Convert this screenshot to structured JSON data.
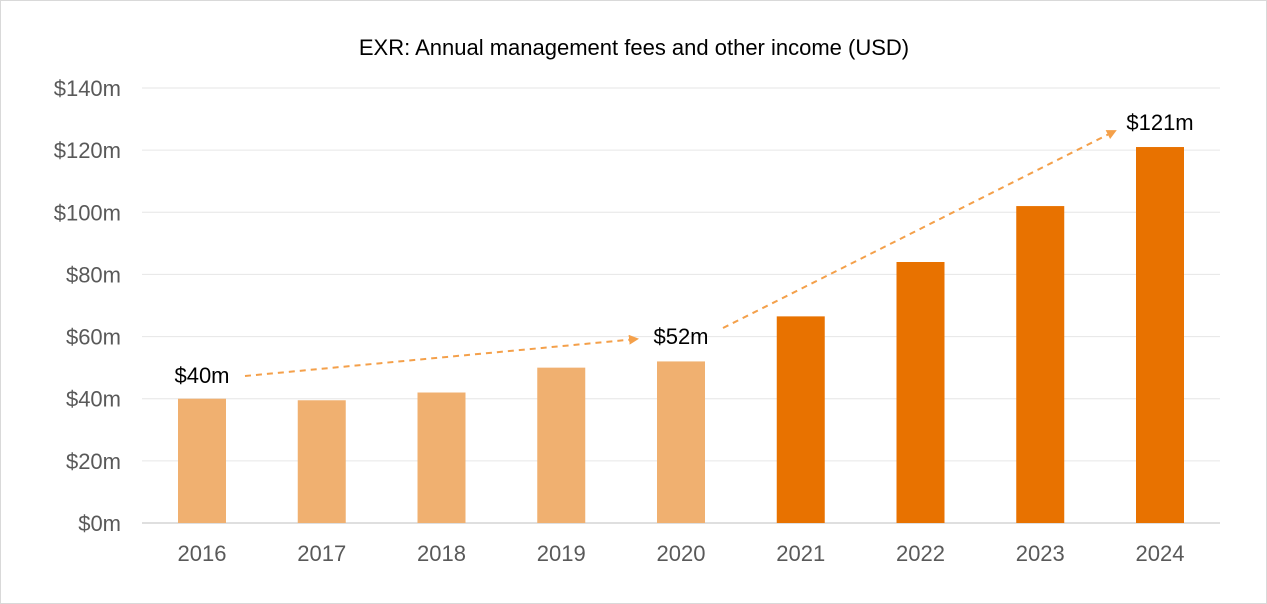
{
  "chart_data": {
    "type": "bar",
    "title": "EXR: Annual management fees and other income (USD)",
    "categories": [
      "2016",
      "2017",
      "2018",
      "2019",
      "2020",
      "2021",
      "2022",
      "2023",
      "2024"
    ],
    "values": [
      40,
      39.5,
      42,
      50,
      52,
      66.5,
      84,
      102,
      121
    ],
    "ylim": [
      0,
      140
    ],
    "y_ticks": [
      0,
      20,
      40,
      60,
      80,
      100,
      120,
      140
    ],
    "y_tick_labels": [
      "$0m",
      "$20m",
      "$40m",
      "$60m",
      "$80m",
      "$100m",
      "$120m",
      "$140m"
    ],
    "xlabel": "",
    "ylabel": "",
    "grid": true,
    "colors": {
      "historic": "#F0B070",
      "recent": "#E87200",
      "arrow": "#F4A04A",
      "grid": "#e6e6e6",
      "tick_text": "#595959"
    },
    "recent_from_index": 5,
    "annotations": [
      {
        "text": "$40m",
        "category": "2016",
        "value": 40
      },
      {
        "text": "$52m",
        "category": "2020",
        "value": 52
      },
      {
        "text": "$121m",
        "category": "2024",
        "value": 121
      }
    ]
  }
}
